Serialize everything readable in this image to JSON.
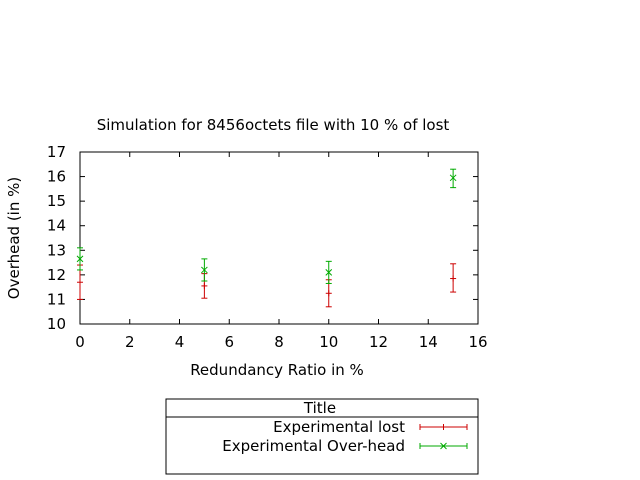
{
  "chart_data": {
    "type": "scatter",
    "title": "Simulation for 8456octets file with 10 % of lost",
    "xlabel": "Redundancy Ratio in %",
    "ylabel": "Overhead (in %)",
    "xlim": [
      0,
      16
    ],
    "ylim": [
      10,
      17
    ],
    "xticks": [
      "0",
      "2",
      "4",
      "6",
      "8",
      "10",
      "12",
      "14",
      "16"
    ],
    "yticks": [
      "10",
      "11",
      "12",
      "13",
      "14",
      "15",
      "16",
      "17"
    ],
    "grid": false,
    "legend_title": "Title",
    "legend_position": "below",
    "series": [
      {
        "name": "Experimental lost",
        "color": "#cc0000",
        "marker": "plus-errorbar",
        "points": [
          {
            "x": 0,
            "y": 11.7,
            "ylo": 11.0,
            "yhi": 12.4
          },
          {
            "x": 5,
            "y": 11.55,
            "ylo": 11.05,
            "yhi": 12.05
          },
          {
            "x": 10,
            "y": 11.25,
            "ylo": 10.7,
            "yhi": 11.8
          },
          {
            "x": 15,
            "y": 11.85,
            "ylo": 11.3,
            "yhi": 12.45
          }
        ]
      },
      {
        "name": "Experimental Over-head",
        "color": "#00aa00",
        "marker": "x-errorbar",
        "points": [
          {
            "x": 0,
            "y": 12.65,
            "ylo": 12.2,
            "yhi": 13.1
          },
          {
            "x": 5,
            "y": 12.2,
            "ylo": 11.75,
            "yhi": 12.65
          },
          {
            "x": 10,
            "y": 12.1,
            "ylo": 11.65,
            "yhi": 12.55
          },
          {
            "x": 15,
            "y": 15.95,
            "ylo": 15.55,
            "yhi": 16.3
          }
        ]
      }
    ]
  }
}
